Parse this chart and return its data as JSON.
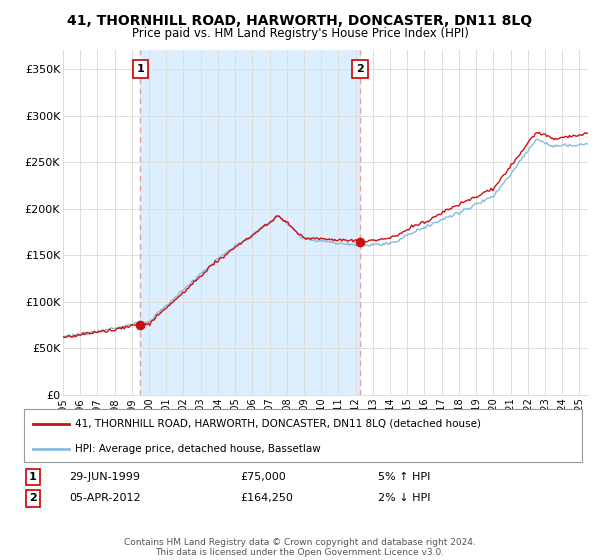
{
  "title": "41, THORNHILL ROAD, HARWORTH, DONCASTER, DN11 8LQ",
  "subtitle": "Price paid vs. HM Land Registry's House Price Index (HPI)",
  "ylabel_ticks": [
    "£0",
    "£50K",
    "£100K",
    "£150K",
    "£200K",
    "£250K",
    "£300K",
    "£350K"
  ],
  "ytick_values": [
    0,
    50000,
    100000,
    150000,
    200000,
    250000,
    300000,
    350000
  ],
  "ylim": [
    0,
    370000
  ],
  "xlim_start": 1995.0,
  "xlim_end": 2025.5,
  "sale1": {
    "year": 1999.49,
    "price": 75000,
    "label": "1",
    "date": "29-JUN-1999",
    "pct": "5% ↑ HPI"
  },
  "sale2": {
    "year": 2012.26,
    "price": 164250,
    "label": "2",
    "date": "05-APR-2012",
    "pct": "2% ↓ HPI"
  },
  "legend_line1": "41, THORNHILL ROAD, HARWORTH, DONCASTER, DN11 8LQ (detached house)",
  "legend_line2": "HPI: Average price, detached house, Bassetlaw",
  "note": "Contains HM Land Registry data © Crown copyright and database right 2024.\nThis data is licensed under the Open Government Licence v3.0.",
  "line_color_red": "#cc1111",
  "line_color_blue": "#88bbdd",
  "vline_color": "#e8a0a0",
  "shade_color": "#ddeeff",
  "background_color": "#ffffff",
  "grid_color": "#dddddd",
  "box_color": "#cc0000"
}
